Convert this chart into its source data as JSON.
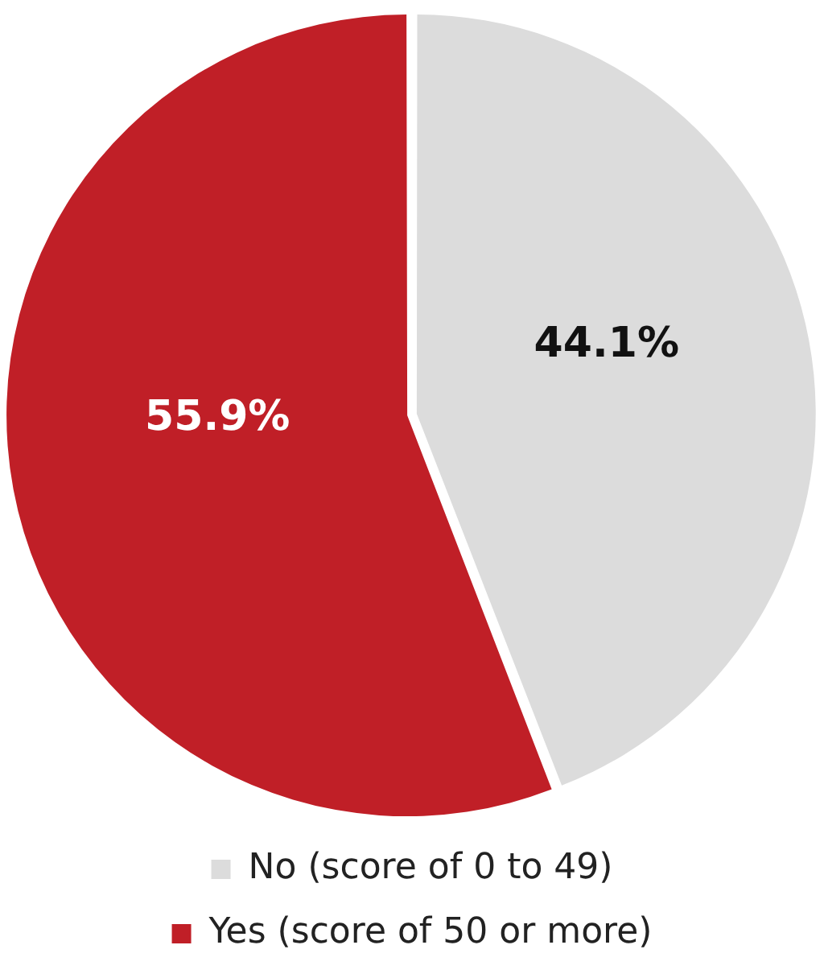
{
  "chart_data": {
    "type": "pie",
    "categories": [
      "No (score of 0 to 49)",
      "Yes (score of 50 or more)"
    ],
    "values": [
      44.1,
      55.9
    ],
    "colors": [
      "#dcdcdc",
      "#c01f27"
    ],
    "value_labels": [
      "44.1%",
      "55.9%"
    ],
    "legend": "bottom"
  }
}
